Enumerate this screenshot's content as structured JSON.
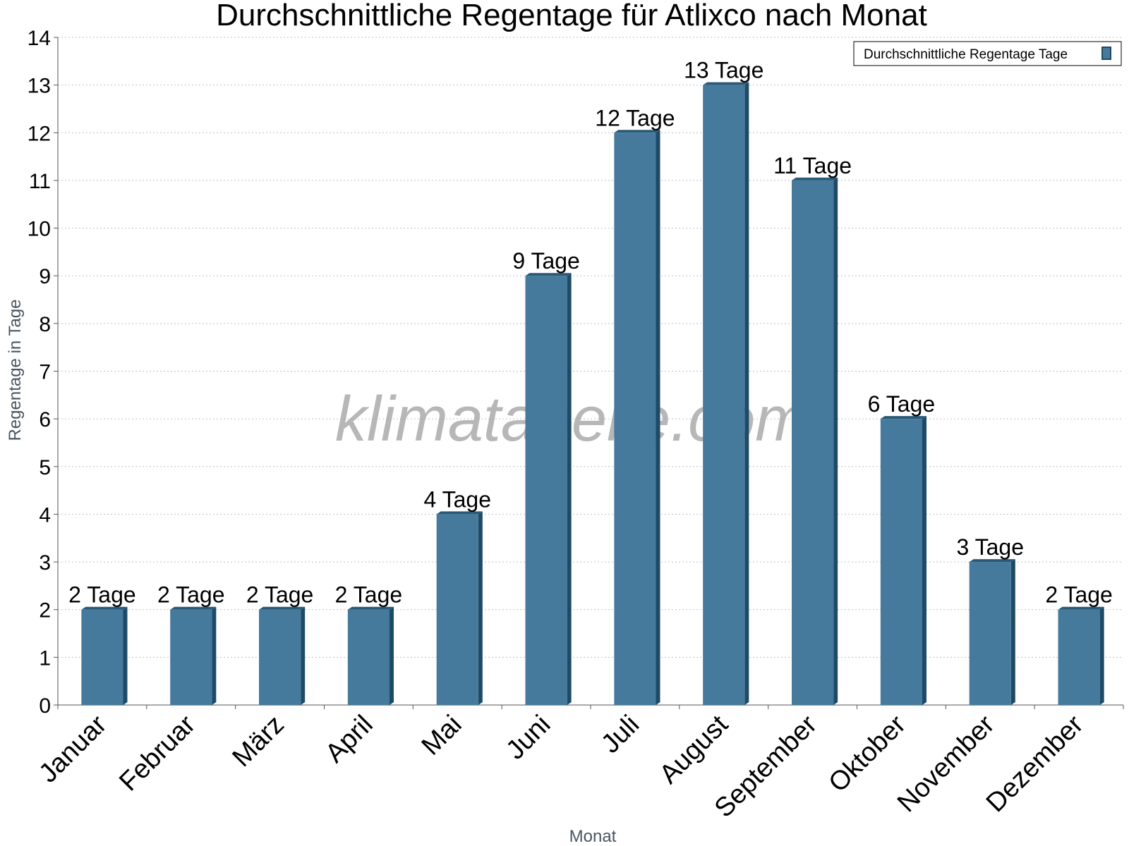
{
  "colors": {
    "bar_front": "#467a9c",
    "bar_side": "#1d4a66",
    "bar_top": "#2a5a78",
    "grid": "#bfbfbf",
    "axis": "#555555"
  },
  "watermark": "klimatabelle.com",
  "chart_data": {
    "type": "bar",
    "title": "Durchschnittliche Regentage für Atlixco nach Monat",
    "xlabel": "Monat",
    "ylabel": "Regentage in Tage",
    "ylim": [
      0,
      14
    ],
    "yticks": [
      "0",
      "1",
      "2",
      "3",
      "4",
      "5",
      "6",
      "7",
      "8",
      "9",
      "10",
      "11",
      "12",
      "13",
      "14"
    ],
    "grid": true,
    "legend_position": "top-right",
    "categories": [
      "Januar",
      "Februar",
      "März",
      "April",
      "Mai",
      "Juni",
      "Juli",
      "August",
      "September",
      "Oktober",
      "November",
      "Dezember"
    ],
    "series": [
      {
        "name": "Durchschnittliche Regentage Tage",
        "values": [
          2,
          2,
          2,
          2,
          4,
          9,
          12,
          13,
          11,
          6,
          3,
          2
        ],
        "labels": [
          "2 Tage",
          "2 Tage",
          "2 Tage",
          "2 Tage",
          "4 Tage",
          "9 Tage",
          "12 Tage",
          "13 Tage",
          "11 Tage",
          "6 Tage",
          "3 Tage",
          "2 Tage"
        ]
      }
    ]
  }
}
